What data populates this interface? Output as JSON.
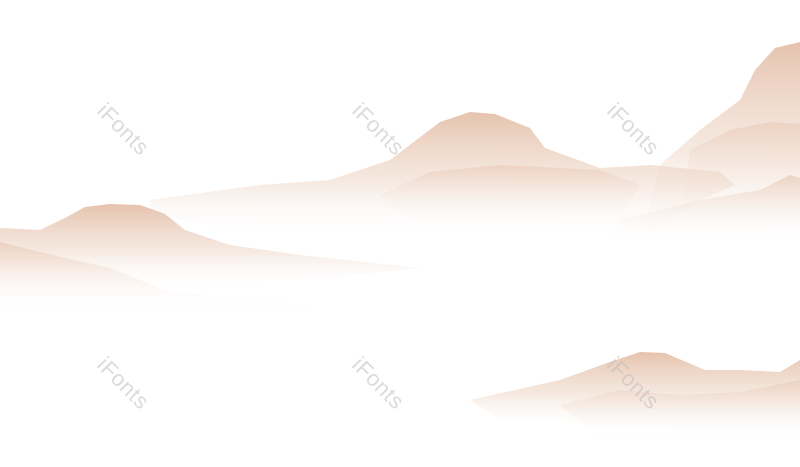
{
  "scene": {
    "description_colors": {
      "mountain": "#e7c6b2",
      "mountain_dark": "#dfb59e",
      "background": "#ffffff"
    }
  },
  "watermark": {
    "text": "iFonts"
  }
}
